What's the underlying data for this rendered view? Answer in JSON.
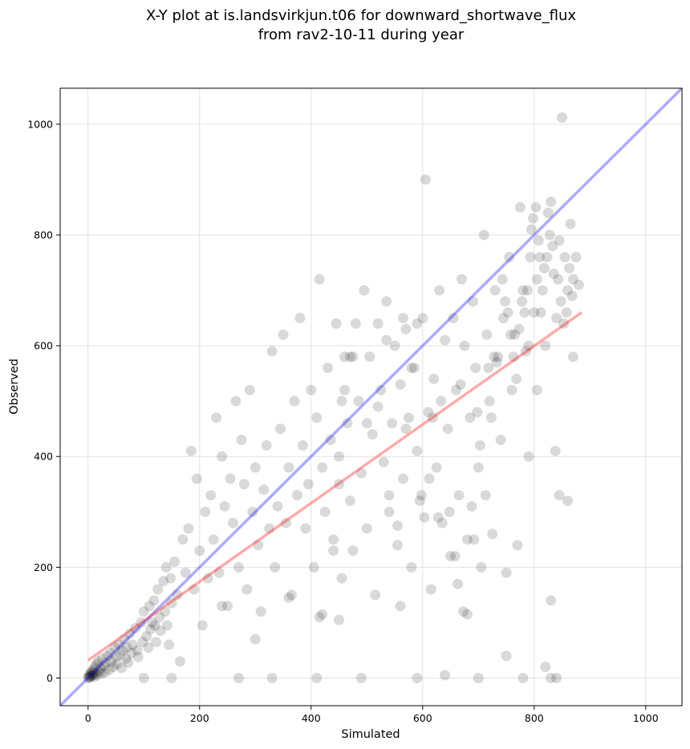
{
  "chart_data": {
    "type": "scatter",
    "title_lines": [
      "X-Y plot at is.landsvirkjun.t06 for downward_shortwave_flux",
      "from rav2-10-11 during year"
    ],
    "xlabel": "Simulated",
    "ylabel": "Observed",
    "xlim": [
      -50,
      1065
    ],
    "ylim": [
      -50,
      1065
    ],
    "xticks": [
      0,
      200,
      400,
      600,
      800,
      1000
    ],
    "yticks": [
      0,
      200,
      400,
      600,
      800,
      1000
    ],
    "grid": true,
    "marker_color": "#000000",
    "marker_alpha": 0.15,
    "one_to_one_line": {
      "color": "#0000ff",
      "alpha": 0.33,
      "x": [
        -50,
        1065
      ],
      "y": [
        -50,
        1065
      ]
    },
    "fit_line": {
      "color": "#ff0000",
      "alpha": 0.33,
      "x": [
        0,
        885
      ],
      "y": [
        32,
        660
      ]
    },
    "points": [
      [
        0,
        0
      ],
      [
        1,
        2
      ],
      [
        2,
        5
      ],
      [
        3,
        1
      ],
      [
        4,
        8
      ],
      [
        5,
        3
      ],
      [
        6,
        12
      ],
      [
        7,
        4
      ],
      [
        8,
        10
      ],
      [
        9,
        6
      ],
      [
        10,
        15
      ],
      [
        11,
        2
      ],
      [
        12,
        20
      ],
      [
        13,
        9
      ],
      [
        15,
        25
      ],
      [
        16,
        5
      ],
      [
        18,
        30
      ],
      [
        20,
        12
      ],
      [
        22,
        18
      ],
      [
        24,
        8
      ],
      [
        25,
        35
      ],
      [
        28,
        22
      ],
      [
        30,
        10
      ],
      [
        32,
        28
      ],
      [
        35,
        40
      ],
      [
        38,
        15
      ],
      [
        40,
        45
      ],
      [
        42,
        30
      ],
      [
        45,
        20
      ],
      [
        48,
        55
      ],
      [
        50,
        38
      ],
      [
        52,
        25
      ],
      [
        55,
        60
      ],
      [
        58,
        42
      ],
      [
        60,
        18
      ],
      [
        62,
        50
      ],
      [
        65,
        70
      ],
      [
        68,
        35
      ],
      [
        70,
        55
      ],
      [
        72,
        28
      ],
      [
        75,
        80
      ],
      [
        78,
        45
      ],
      [
        80,
        60
      ],
      [
        85,
        90
      ],
      [
        88,
        50
      ],
      [
        90,
        38
      ],
      [
        95,
        100
      ],
      [
        98,
        65
      ],
      [
        100,
        120
      ],
      [
        105,
        75
      ],
      [
        108,
        55
      ],
      [
        110,
        130
      ],
      [
        112,
        88
      ],
      [
        115,
        100
      ],
      [
        118,
        140
      ],
      [
        120,
        95
      ],
      [
        122,
        65
      ],
      [
        125,
        160
      ],
      [
        128,
        110
      ],
      [
        130,
        85
      ],
      [
        135,
        175
      ],
      [
        138,
        120
      ],
      [
        140,
        200
      ],
      [
        142,
        95
      ],
      [
        145,
        60
      ],
      [
        148,
        180
      ],
      [
        150,
        135
      ],
      [
        155,
        210
      ],
      [
        160,
        150
      ],
      [
        165,
        30
      ],
      [
        170,
        250
      ],
      [
        175,
        190
      ],
      [
        180,
        270
      ],
      [
        185,
        410
      ],
      [
        190,
        160
      ],
      [
        195,
        360
      ],
      [
        200,
        230
      ],
      [
        205,
        95
      ],
      [
        210,
        300
      ],
      [
        215,
        180
      ],
      [
        220,
        330
      ],
      [
        225,
        250
      ],
      [
        230,
        470
      ],
      [
        235,
        190
      ],
      [
        240,
        400
      ],
      [
        245,
        310
      ],
      [
        250,
        130
      ],
      [
        255,
        360
      ],
      [
        260,
        280
      ],
      [
        265,
        500
      ],
      [
        270,
        200
      ],
      [
        275,
        430
      ],
      [
        280,
        350
      ],
      [
        285,
        160
      ],
      [
        290,
        520
      ],
      [
        295,
        300
      ],
      [
        300,
        380
      ],
      [
        305,
        240
      ],
      [
        310,
        120
      ],
      [
        315,
        340
      ],
      [
        320,
        420
      ],
      [
        325,
        270
      ],
      [
        330,
        590
      ],
      [
        335,
        200
      ],
      [
        340,
        310
      ],
      [
        345,
        450
      ],
      [
        350,
        620
      ],
      [
        355,
        280
      ],
      [
        360,
        380
      ],
      [
        365,
        150
      ],
      [
        370,
        500
      ],
      [
        375,
        330
      ],
      [
        380,
        650
      ],
      [
        385,
        420
      ],
      [
        390,
        270
      ],
      [
        395,
        350
      ],
      [
        400,
        520
      ],
      [
        405,
        200
      ],
      [
        410,
        470
      ],
      [
        415,
        110
      ],
      [
        420,
        380
      ],
      [
        425,
        300
      ],
      [
        430,
        560
      ],
      [
        435,
        430
      ],
      [
        440,
        250
      ],
      [
        445,
        640
      ],
      [
        450,
        350
      ],
      [
        455,
        180
      ],
      [
        460,
        580
      ],
      [
        465,
        460
      ],
      [
        470,
        320
      ],
      [
        475,
        230
      ],
      [
        480,
        640
      ],
      [
        485,
        500
      ],
      [
        490,
        370
      ],
      [
        495,
        700
      ],
      [
        500,
        270
      ],
      [
        505,
        580
      ],
      [
        510,
        440
      ],
      [
        515,
        150
      ],
      [
        520,
        640
      ],
      [
        525,
        520
      ],
      [
        530,
        390
      ],
      [
        535,
        680
      ],
      [
        540,
        300
      ],
      [
        545,
        460
      ],
      [
        550,
        600
      ],
      [
        555,
        240
      ],
      [
        560,
        530
      ],
      [
        565,
        360
      ],
      [
        570,
        630
      ],
      [
        575,
        470
      ],
      [
        580,
        200
      ],
      [
        585,
        560
      ],
      [
        590,
        410
      ],
      [
        595,
        320
      ],
      [
        600,
        650
      ],
      [
        605,
        900
      ],
      [
        610,
        480
      ],
      [
        615,
        160
      ],
      [
        620,
        540
      ],
      [
        625,
        380
      ],
      [
        630,
        700
      ],
      [
        635,
        280
      ],
      [
        640,
        610
      ],
      [
        645,
        450
      ],
      [
        650,
        220
      ],
      [
        655,
        650
      ],
      [
        660,
        520
      ],
      [
        665,
        330
      ],
      [
        670,
        720
      ],
      [
        675,
        600
      ],
      [
        680,
        250
      ],
      [
        685,
        470
      ],
      [
        690,
        680
      ],
      [
        695,
        560
      ],
      [
        700,
        380
      ],
      [
        705,
        200
      ],
      [
        710,
        800
      ],
      [
        715,
        620
      ],
      [
        720,
        500
      ],
      [
        725,
        260
      ],
      [
        730,
        700
      ],
      [
        735,
        580
      ],
      [
        740,
        430
      ],
      [
        745,
        650
      ],
      [
        750,
        190
      ],
      [
        755,
        760
      ],
      [
        760,
        520
      ],
      [
        765,
        620
      ],
      [
        770,
        240
      ],
      [
        775,
        850
      ],
      [
        780,
        700
      ],
      [
        785,
        590
      ],
      [
        790,
        400
      ],
      [
        795,
        810
      ],
      [
        800,
        660
      ],
      [
        805,
        520
      ],
      [
        810,
        760
      ],
      [
        815,
        700
      ],
      [
        820,
        600
      ],
      [
        825,
        840
      ],
      [
        830,
        860
      ],
      [
        835,
        730
      ],
      [
        840,
        650
      ],
      [
        845,
        790
      ],
      [
        850,
        1012
      ],
      [
        855,
        760
      ],
      [
        860,
        700
      ],
      [
        865,
        820
      ],
      [
        870,
        720
      ],
      [
        875,
        760
      ],
      [
        880,
        710
      ],
      [
        640,
        5
      ],
      [
        700,
        0
      ],
      [
        780,
        0
      ],
      [
        830,
        0
      ],
      [
        840,
        0
      ],
      [
        590,
        0
      ],
      [
        490,
        0
      ],
      [
        410,
        0
      ],
      [
        330,
        0
      ],
      [
        270,
        0
      ],
      [
        150,
        0
      ],
      [
        100,
        0
      ],
      [
        820,
        20
      ],
      [
        750,
        40
      ],
      [
        680,
        115
      ],
      [
        560,
        130
      ],
      [
        450,
        105
      ],
      [
        420,
        115
      ],
      [
        360,
        145
      ],
      [
        300,
        70
      ],
      [
        240,
        130
      ],
      [
        830,
        140
      ],
      [
        845,
        330
      ],
      [
        838,
        410
      ],
      [
        860,
        320
      ],
      [
        870,
        580
      ],
      [
        790,
        600
      ],
      [
        805,
        720
      ],
      [
        812,
        660
      ],
      [
        570,
        450
      ],
      [
        590,
        640
      ],
      [
        415,
        720
      ],
      [
        440,
        230
      ],
      [
        460,
        520
      ],
      [
        470,
        580
      ],
      [
        450,
        400
      ],
      [
        455,
        500
      ],
      [
        475,
        580
      ],
      [
        500,
        460
      ],
      [
        520,
        490
      ],
      [
        535,
        610
      ],
      [
        540,
        330
      ],
      [
        555,
        275
      ],
      [
        565,
        650
      ],
      [
        580,
        560
      ],
      [
        598,
        330
      ],
      [
        603,
        290
      ],
      [
        612,
        360
      ],
      [
        618,
        470
      ],
      [
        628,
        290
      ],
      [
        633,
        500
      ],
      [
        648,
        300
      ],
      [
        658,
        220
      ],
      [
        663,
        170
      ],
      [
        668,
        530
      ],
      [
        673,
        120
      ],
      [
        688,
        310
      ],
      [
        692,
        250
      ],
      [
        698,
        480
      ],
      [
        703,
        420
      ],
      [
        713,
        330
      ],
      [
        718,
        560
      ],
      [
        723,
        470
      ],
      [
        728,
        580
      ],
      [
        733,
        570
      ],
      [
        743,
        720
      ],
      [
        748,
        680
      ],
      [
        753,
        660
      ],
      [
        758,
        620
      ],
      [
        763,
        580
      ],
      [
        768,
        540
      ],
      [
        773,
        630
      ],
      [
        778,
        680
      ],
      [
        783,
        660
      ],
      [
        788,
        700
      ],
      [
        793,
        760
      ],
      [
        798,
        830
      ],
      [
        803,
        850
      ],
      [
        808,
        790
      ],
      [
        818,
        740
      ],
      [
        823,
        760
      ],
      [
        828,
        800
      ],
      [
        833,
        780
      ],
      [
        843,
        720
      ],
      [
        848,
        680
      ],
      [
        853,
        640
      ],
      [
        858,
        660
      ],
      [
        863,
        740
      ],
      [
        868,
        690
      ]
    ]
  }
}
